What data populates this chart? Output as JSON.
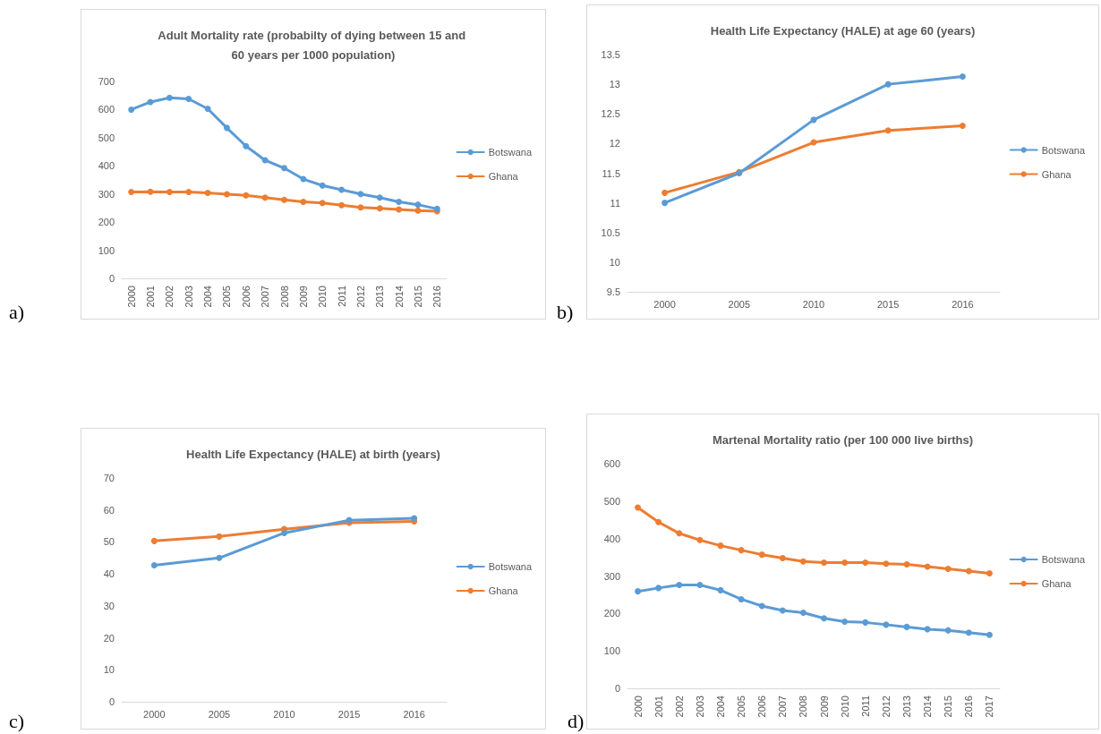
{
  "chart_data": [
    {
      "type": "line",
      "title": "Adult Mortality rate (probabilty of dying between 15 and 60 years per 1000 population)",
      "categories": [
        "2000",
        "2001",
        "2002",
        "2003",
        "2004",
        "2005",
        "2006",
        "2007",
        "2008",
        "2009",
        "2010",
        "2011",
        "2012",
        "2013",
        "2014",
        "2015",
        "2016"
      ],
      "series": [
        {
          "name": "Botswana",
          "color": "#5b9bd5",
          "values": [
            600,
            627,
            642,
            638,
            603,
            535,
            470,
            420,
            392,
            353,
            330,
            315,
            300,
            287,
            272,
            262,
            247
          ]
        },
        {
          "name": "Ghana",
          "color": "#ed7d31",
          "values": [
            307,
            308,
            307,
            307,
            304,
            299,
            295,
            287,
            279,
            272,
            268,
            260,
            252,
            249,
            245,
            241,
            239
          ]
        }
      ],
      "ylim": [
        0,
        700
      ],
      "yticks": [
        0,
        100,
        200,
        300,
        400,
        500,
        600,
        700
      ],
      "grid": false,
      "legend": "right",
      "marker": "circle",
      "annotations": [
        "a)"
      ]
    },
    {
      "type": "line",
      "title": "Health Life Expectancy (HALE) at age 60 (years)",
      "categories": [
        "2000",
        "2005",
        "2010",
        "2015",
        "2016"
      ],
      "series": [
        {
          "name": "Botswana",
          "color": "#5b9bd5",
          "values": [
            11.0,
            11.5,
            12.4,
            13.0,
            13.13
          ]
        },
        {
          "name": "Ghana",
          "color": "#ed7d31",
          "values": [
            11.17,
            11.52,
            12.02,
            12.22,
            12.3
          ]
        }
      ],
      "ylim": [
        9.5,
        13.5
      ],
      "yticks": [
        9.5,
        10,
        10.5,
        11,
        11.5,
        12,
        12.5,
        13,
        13.5
      ],
      "grid": false,
      "legend": "right",
      "marker": "circle",
      "annotations": [
        "b)"
      ]
    },
    {
      "type": "line",
      "title": "Health Life Expectancy (HALE) at birth (years)",
      "categories": [
        "2000",
        "2005",
        "2010",
        "2015",
        "2016"
      ],
      "series": [
        {
          "name": "Botswana",
          "color": "#5b9bd5",
          "values": [
            42.7,
            45.0,
            52.8,
            56.8,
            57.4
          ]
        },
        {
          "name": "Ghana",
          "color": "#ed7d31",
          "values": [
            50.3,
            51.7,
            54.0,
            56.0,
            56.4
          ]
        }
      ],
      "ylim": [
        0,
        70
      ],
      "yticks": [
        0,
        10,
        20,
        30,
        40,
        50,
        60,
        70
      ],
      "grid": false,
      "legend": "right",
      "marker": "circle",
      "annotations": [
        "c)"
      ]
    },
    {
      "type": "line",
      "title": "Martenal Mortality ratio (per 100 000 live births)",
      "categories": [
        "2000",
        "2001",
        "2002",
        "2003",
        "2004",
        "2005",
        "2006",
        "2007",
        "2008",
        "2009",
        "2010",
        "2011",
        "2012",
        "2013",
        "2014",
        "2015",
        "2016",
        "2017"
      ],
      "series": [
        {
          "name": "Botswana",
          "color": "#5b9bd5",
          "values": [
            259,
            268,
            276,
            276,
            262,
            238,
            220,
            208,
            202,
            187,
            178,
            176,
            170,
            164,
            158,
            155,
            149,
            143
          ]
        },
        {
          "name": "Ghana",
          "color": "#ed7d31",
          "values": [
            483,
            444,
            414,
            396,
            381,
            369,
            357,
            348,
            339,
            336,
            336,
            336,
            333,
            331,
            325,
            319,
            313,
            307
          ]
        }
      ],
      "ylim": [
        0,
        600
      ],
      "yticks": [
        0,
        100,
        200,
        300,
        400,
        500,
        600
      ],
      "grid": false,
      "legend": "right",
      "marker": "circle",
      "annotations": [
        "d)"
      ]
    }
  ]
}
